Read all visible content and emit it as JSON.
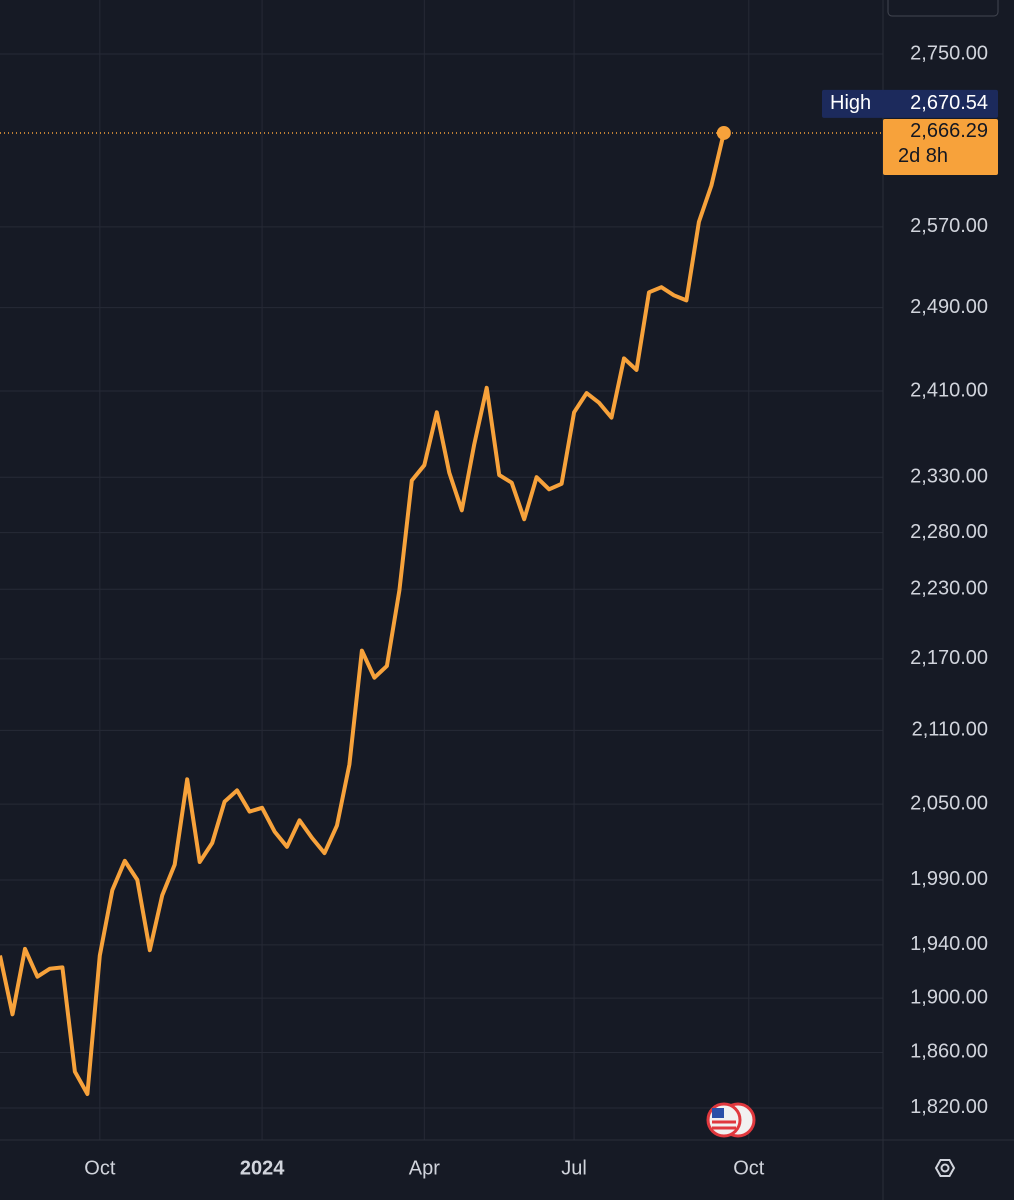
{
  "chart_data": {
    "type": "line",
    "log": true,
    "grid": true,
    "color": "#f7a23b",
    "categories": [
      null,
      null,
      null,
      null,
      null,
      null,
      null,
      null,
      "Oct",
      null,
      null,
      null,
      null,
      null,
      null,
      null,
      null,
      null,
      null,
      null,
      null,
      "2024",
      null,
      null,
      null,
      null,
      null,
      null,
      null,
      null,
      null,
      null,
      null,
      null,
      "Apr",
      null,
      null,
      null,
      null,
      null,
      null,
      null,
      null,
      null,
      null,
      null,
      "Jul",
      null,
      null,
      null,
      null,
      null,
      null,
      null,
      null,
      null,
      null,
      null,
      null,
      null,
      "Oct"
    ],
    "values": [
      1932,
      1888,
      1937,
      1916,
      1922,
      1923,
      1846,
      1830,
      1932,
      1982,
      2005,
      1990,
      1936,
      1978,
      2002,
      2070,
      2004,
      2019,
      2052,
      2061,
      2044,
      2047,
      2028,
      2016,
      2037,
      2023,
      2011,
      2033,
      2082,
      2177,
      2154,
      2164,
      2229,
      2327,
      2341,
      2390,
      2334,
      2300,
      2360,
      2413,
      2332,
      2325,
      2292,
      2330,
      2319,
      2324,
      2390,
      2408,
      2399,
      2385,
      2441,
      2430,
      2505,
      2510,
      2502,
      2497,
      2575,
      2612,
      2666.29,
      null,
      null
    ],
    "value_labels": [
      null,
      null,
      null,
      null,
      null,
      null,
      null,
      null,
      null,
      null,
      null,
      null,
      null,
      null,
      null,
      null,
      null,
      null,
      null,
      null,
      null,
      null,
      null,
      null,
      null,
      null,
      null,
      null,
      null,
      null,
      null,
      null,
      null,
      null,
      null,
      null,
      null,
      null,
      null,
      null,
      null,
      null,
      null,
      null,
      null,
      null,
      null,
      null,
      null,
      null,
      null,
      null,
      null,
      null,
      null,
      null,
      null,
      null,
      "2,666.29",
      null,
      null
    ],
    "ylim": [
      1797.3,
      2808.8
    ],
    "yticks": [
      {
        "value": 1820,
        "label": "1,820.00"
      },
      {
        "value": 1860,
        "label": "1,860.00"
      },
      {
        "value": 1900,
        "label": "1,900.00"
      },
      {
        "value": 1940,
        "label": "1,940.00"
      },
      {
        "value": 1990,
        "label": "1,990.00"
      },
      {
        "value": 2050,
        "label": "2,050.00"
      },
      {
        "value": 2110,
        "label": "2,110.00"
      },
      {
        "value": 2170,
        "label": "2,170.00"
      },
      {
        "value": 2230,
        "label": "2,230.00"
      },
      {
        "value": 2280,
        "label": "2,280.00"
      },
      {
        "value": 2330,
        "label": "2,330.00"
      },
      {
        "value": 2410,
        "label": "2,410.00"
      },
      {
        "value": 2490,
        "label": "2,490.00"
      },
      {
        "value": 2570,
        "label": "2,570.00"
      },
      {
        "value": 2750,
        "label": "2,750.00"
      }
    ],
    "high_marker": {
      "name": "High",
      "value": 2670.54,
      "label": "2,670.54"
    },
    "countdown": "2d 8h"
  }
}
